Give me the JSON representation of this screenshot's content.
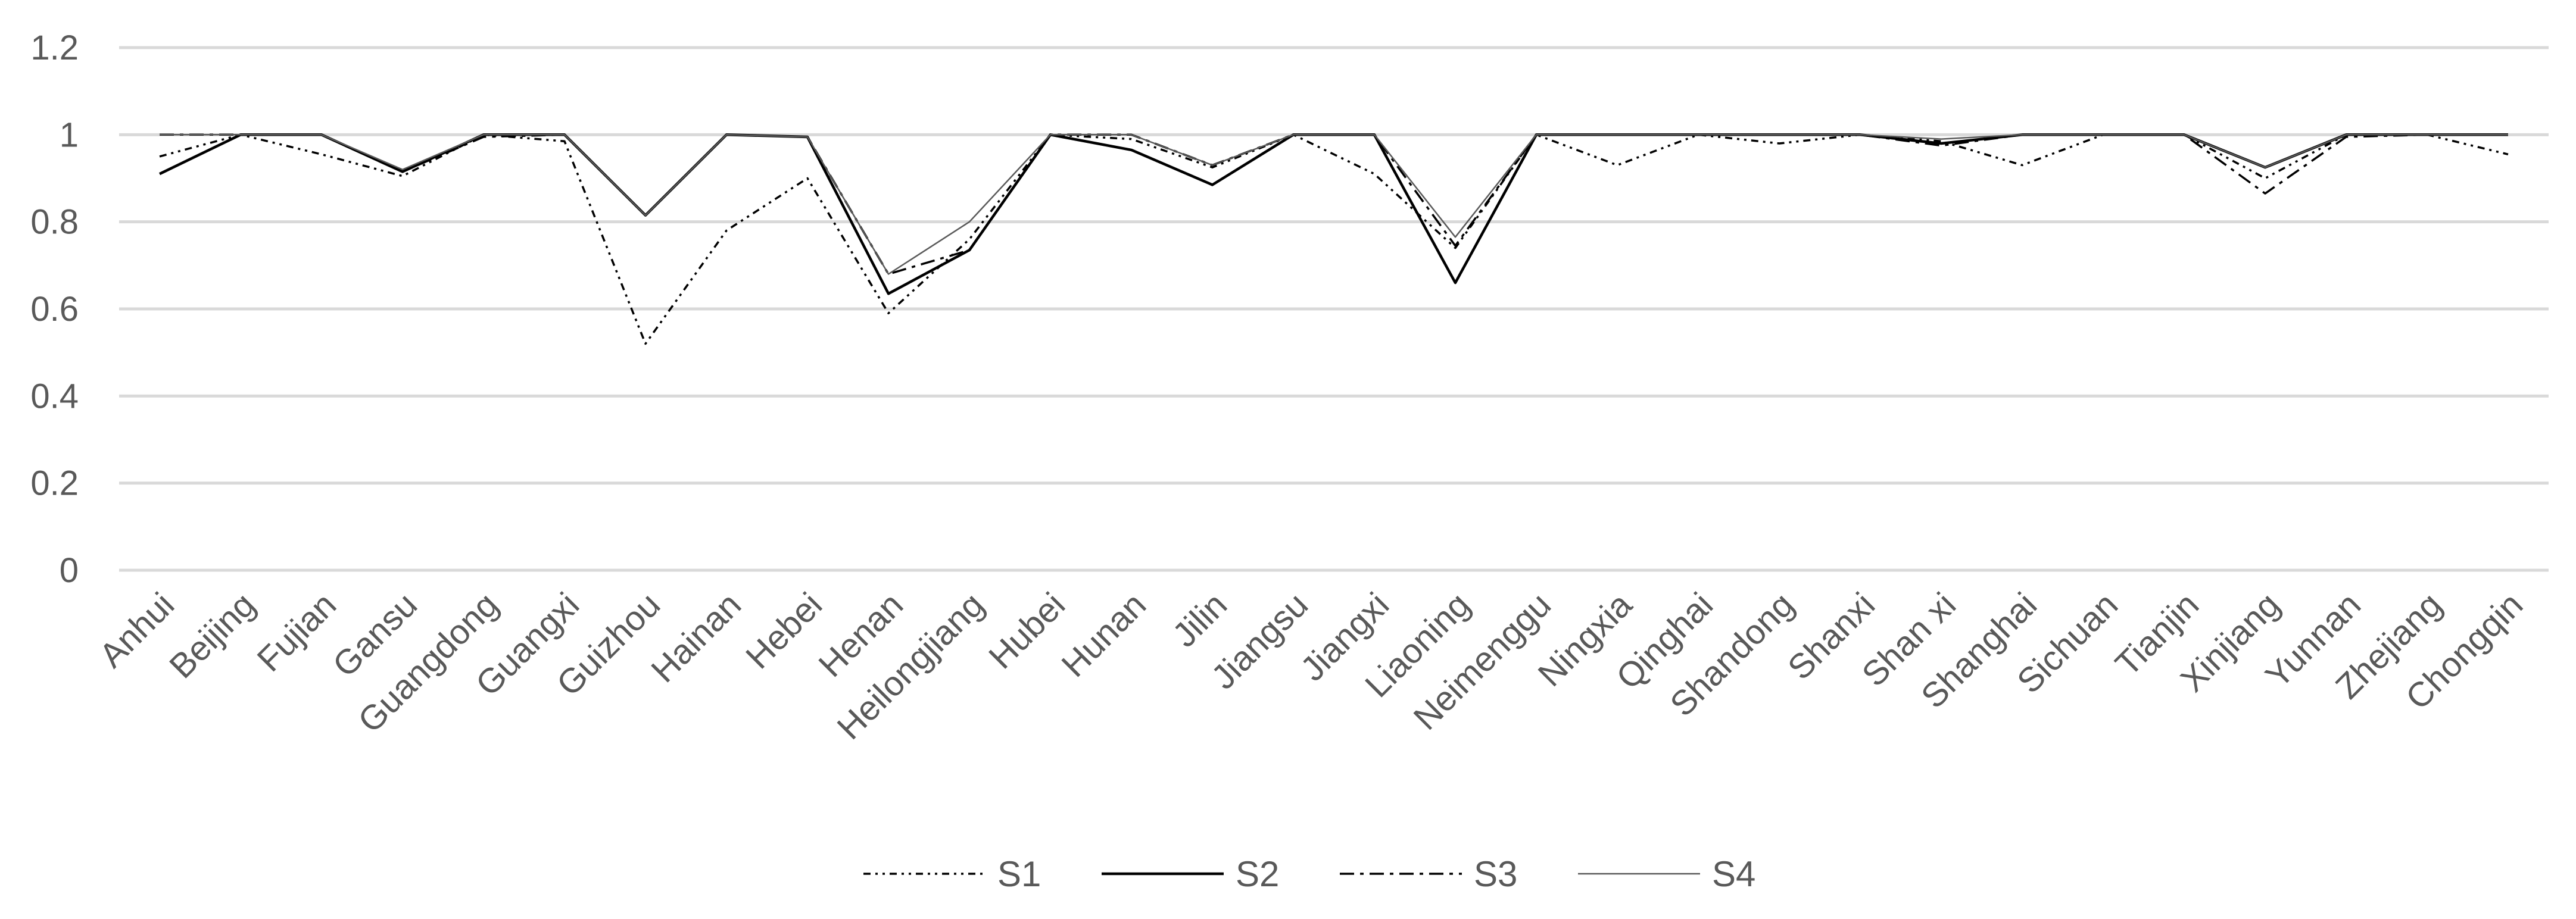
{
  "chart_data": {
    "type": "line",
    "title": "",
    "xlabel": "",
    "ylabel": "",
    "ylim": [
      0,
      1.2
    ],
    "yticks": [
      "0",
      "0.2",
      "0.4",
      "0.6",
      "0.8",
      "1",
      "1.2"
    ],
    "grid": true,
    "legend_position": "bottom",
    "categories": [
      "Anhui",
      "Beijing",
      "Fujian",
      "Gansu",
      "Guangdong",
      "Guangxi",
      "Guizhou",
      "Hainan",
      "Hebei",
      "Henan",
      "Heilongjiang",
      "Hubei",
      "Hunan",
      "Jilin",
      "Jiangsu",
      "Jiangxi",
      "Liaoning",
      "Neimenggu",
      "Ningxia",
      "Qinghai",
      "Shandong",
      "Shanxi",
      "Shan xi",
      "Shanghai",
      "Sichuan",
      "Tianjin",
      "Xinjiang",
      "Yunnan",
      "Zhejiang",
      "Chongqin"
    ],
    "series": [
      {
        "name": "S1",
        "style": "dot-dot-dash",
        "color": "#000000",
        "values": [
          0.95,
          1.0,
          0.955,
          0.905,
          1.0,
          0.985,
          0.52,
          0.78,
          0.9,
          0.59,
          0.76,
          1.0,
          0.99,
          0.925,
          1.0,
          0.91,
          0.74,
          1.0,
          0.93,
          1.0,
          0.98,
          1.0,
          0.985,
          0.93,
          1.0,
          1.0,
          0.9,
          1.0,
          1.0,
          0.955
        ]
      },
      {
        "name": "S2",
        "style": "solid",
        "color": "#000000",
        "values": [
          0.91,
          1.0,
          1.0,
          0.915,
          1.0,
          1.0,
          0.815,
          1.0,
          0.995,
          0.635,
          0.735,
          1.0,
          0.965,
          0.885,
          1.0,
          1.0,
          0.66,
          1.0,
          1.0,
          1.0,
          1.0,
          1.0,
          0.98,
          1.0,
          1.0,
          1.0,
          0.925,
          1.0,
          1.0,
          1.0
        ]
      },
      {
        "name": "S3",
        "style": "dash-dot",
        "color": "#000000",
        "values": [
          1.0,
          1.0,
          1.0,
          0.915,
          0.995,
          1.0,
          0.815,
          1.0,
          0.995,
          0.68,
          0.735,
          1.0,
          1.0,
          0.93,
          1.0,
          1.0,
          0.745,
          1.0,
          1.0,
          1.0,
          1.0,
          1.0,
          0.975,
          1.0,
          1.0,
          1.0,
          0.865,
          0.995,
          1.0,
          1.0
        ]
      },
      {
        "name": "S4",
        "style": "thin",
        "color": "#595959",
        "values": [
          1.0,
          1.0,
          1.0,
          0.92,
          1.0,
          1.0,
          0.815,
          1.0,
          0.995,
          0.68,
          0.8,
          1.0,
          1.0,
          0.93,
          1.0,
          1.0,
          0.765,
          1.0,
          1.0,
          1.0,
          1.0,
          1.0,
          0.99,
          1.0,
          1.0,
          1.0,
          0.925,
          1.0,
          1.0,
          1.0
        ]
      }
    ]
  }
}
